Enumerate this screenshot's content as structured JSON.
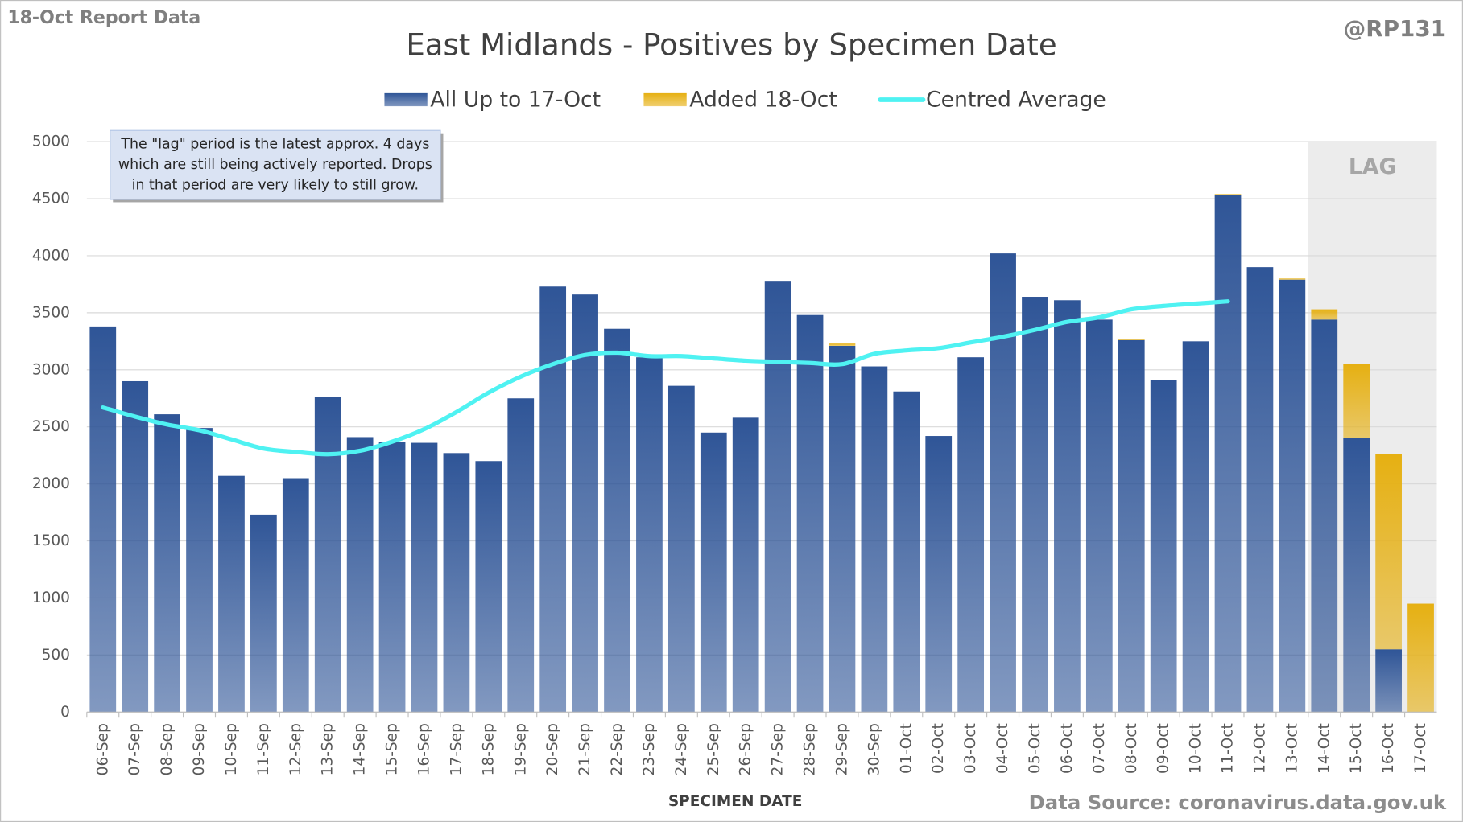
{
  "chart_data": {
    "type": "bar",
    "stacked": true,
    "report_label": "18-Oct Report Data",
    "author": "@RP131",
    "title": "East Midlands - Positives by Specimen Date",
    "x_label": "SPECIMEN DATE",
    "source": "Data Source: coronavirus.data.gov.uk",
    "annotation": [
      "The \"lag\" period is the latest approx. 4 days",
      "which are still being actively reported.  Drops",
      "in that period are very likely to still grow."
    ],
    "lag_label": "LAG",
    "categories": [
      "06-Sep",
      "07-Sep",
      "08-Sep",
      "09-Sep",
      "10-Sep",
      "11-Sep",
      "12-Sep",
      "13-Sep",
      "14-Sep",
      "15-Sep",
      "16-Sep",
      "17-Sep",
      "18-Sep",
      "19-Sep",
      "20-Sep",
      "21-Sep",
      "22-Sep",
      "23-Sep",
      "24-Sep",
      "25-Sep",
      "26-Sep",
      "27-Sep",
      "28-Sep",
      "29-Sep",
      "30-Sep",
      "01-Oct",
      "02-Oct",
      "03-Oct",
      "04-Oct",
      "05-Oct",
      "06-Oct",
      "07-Oct",
      "08-Oct",
      "09-Oct",
      "10-Oct",
      "11-Oct",
      "12-Oct",
      "13-Oct",
      "14-Oct",
      "15-Oct",
      "16-Oct",
      "17-Oct"
    ],
    "series": [
      {
        "name": "All Up to 17-Oct",
        "color": "#2f5597",
        "values": [
          3380,
          2900,
          2610,
          2490,
          2070,
          1730,
          2050,
          2760,
          2410,
          2370,
          2360,
          2270,
          2200,
          2750,
          3730,
          3660,
          3360,
          3110,
          2860,
          2450,
          2580,
          3780,
          3480,
          3210,
          3030,
          2810,
          2420,
          3110,
          4020,
          3640,
          3610,
          3440,
          3260,
          2910,
          3250,
          4530,
          3900,
          3790,
          3440,
          2400,
          550,
          0
        ]
      },
      {
        "name": "Added 18-Oct",
        "color": "#e6b012",
        "values": [
          0,
          0,
          0,
          0,
          0,
          0,
          0,
          0,
          0,
          0,
          0,
          0,
          0,
          0,
          0,
          0,
          0,
          0,
          0,
          0,
          0,
          0,
          0,
          20,
          0,
          0,
          0,
          0,
          0,
          0,
          0,
          0,
          10,
          0,
          0,
          10,
          0,
          10,
          90,
          650,
          1710,
          950
        ]
      },
      {
        "name": "Centred Average",
        "type": "line",
        "color": "#4ff2f2",
        "values": [
          2670,
          2590,
          2520,
          2470,
          2390,
          2310,
          2280,
          2260,
          2290,
          2370,
          2480,
          2630,
          2800,
          2940,
          3050,
          3130,
          3150,
          3120,
          3120,
          3100,
          3080,
          3070,
          3060,
          3050,
          3140,
          3170,
          3190,
          3240,
          3290,
          3350,
          3420,
          3460,
          3530,
          3560,
          3580,
          3600,
          null,
          null,
          null,
          null,
          null,
          null
        ]
      }
    ],
    "lag_start": "14-Oct",
    "ylim": [
      0,
      5000
    ],
    "yticks": [
      0,
      500,
      1000,
      1500,
      2000,
      2500,
      3000,
      3500,
      4000,
      4500,
      5000
    ],
    "grid": true
  }
}
